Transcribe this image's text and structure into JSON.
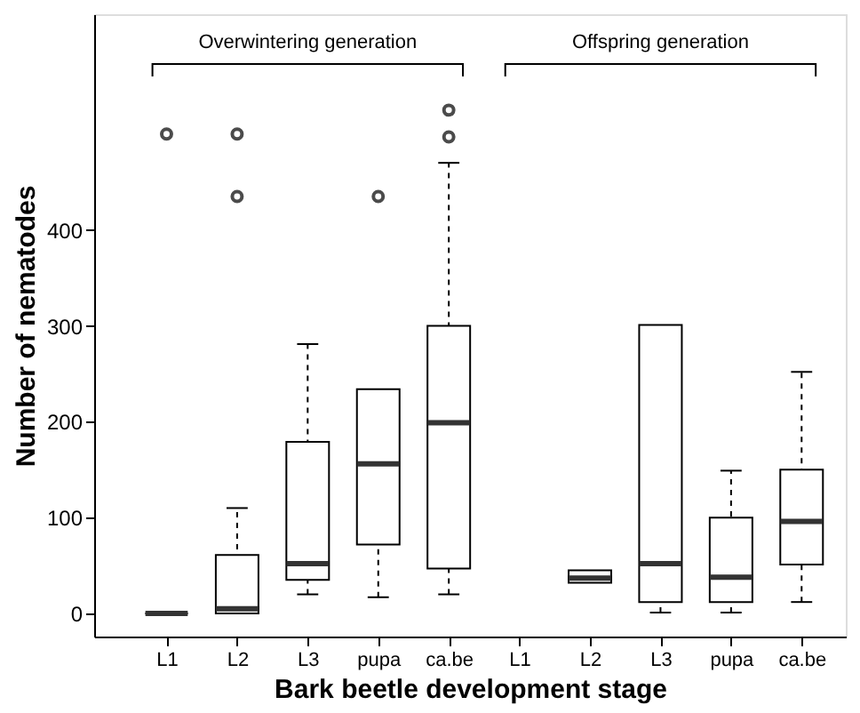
{
  "chart_data": {
    "type": "box",
    "xlabel": "Bark beetle development stage",
    "ylabel": "Number of nematodes",
    "categories": [
      "L1",
      "L2",
      "L3",
      "pupa",
      "ca.be",
      "L1",
      "L2",
      "L3",
      "pupa",
      "ca.be"
    ],
    "boxes": [
      {
        "low": 0,
        "q1": 0,
        "median": 0,
        "q3": 0,
        "high": 0,
        "outliers": [
          500
        ]
      },
      {
        "low": 0,
        "q1": 0,
        "median": 5,
        "q3": 61,
        "high": 110,
        "outliers": [
          435,
          500
        ]
      },
      {
        "low": 20,
        "q1": 35,
        "median": 52,
        "q3": 179,
        "high": 281
      },
      {
        "low": 17,
        "q1": 72,
        "median": 156,
        "q3": 234,
        "high": 234,
        "outliers": [
          435
        ]
      },
      {
        "low": 20,
        "q1": 47,
        "median": 199,
        "q3": 300,
        "high": 470,
        "outliers": [
          497,
          525
        ]
      },
      null,
      {
        "low": 32,
        "q1": 32,
        "median": 37,
        "q3": 45,
        "high": 45
      },
      {
        "low": 1,
        "q1": 12,
        "median": 52,
        "q3": 301,
        "high": 301
      },
      {
        "low": 1,
        "q1": 12,
        "median": 38,
        "q3": 100,
        "high": 149
      },
      {
        "low": 12,
        "q1": 51,
        "median": 96,
        "q3": 150,
        "high": 252
      }
    ],
    "ylim": [
      -24,
      625
    ],
    "yticks": [
      0,
      100,
      200,
      300,
      400
    ],
    "annotations": [
      "Overwintering generation",
      "Offspring generation"
    ],
    "grid": false,
    "line_style": "dashed"
  }
}
